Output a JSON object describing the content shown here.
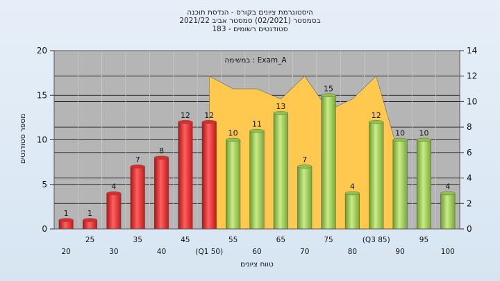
{
  "chart_data": {
    "type": "bar",
    "title": [
      "היסטוגרמת ציונים בקורס - הנדסת תוכנה",
      "בסמסטר  (02/2021)  סמסטר אביב 2021/22",
      "סטודנטים רשומים - 183"
    ],
    "xlabel": "טווח ציונים",
    "ylabel": "מספר סטודנטים",
    "annotation": "במשימה : Exam_A",
    "ylim": [
      0,
      20
    ],
    "y2lim": [
      0,
      14
    ],
    "yticks": [
      "0",
      "5",
      "10",
      "15",
      "20"
    ],
    "y2ticks": [
      "0",
      "2",
      "4",
      "6",
      "8",
      "10",
      "12",
      "14"
    ],
    "categories": [
      "20",
      "25",
      "30",
      "35",
      "40",
      "45",
      "50",
      "55",
      "60",
      "65",
      "70",
      "75",
      "80",
      "85",
      "90",
      "95",
      "100"
    ],
    "xtick_labels": [
      "20",
      "25",
      "30",
      "35",
      "40",
      "45",
      "(Q1 50)",
      "55",
      "60",
      "65",
      "70",
      "75",
      "80",
      "(Q3 85)",
      "90",
      "95",
      "100"
    ],
    "values": [
      1,
      1,
      4,
      7,
      8,
      12,
      12,
      10,
      11,
      13,
      7,
      15,
      4,
      12,
      10,
      10,
      4
    ],
    "bar_colors": [
      "#dd2a2a",
      "#dd2a2a",
      "#dd2a2a",
      "#dd2a2a",
      "#dd2a2a",
      "#dd2a2a",
      "#dd2a2a",
      "#8fc24a",
      "#8fc24a",
      "#8fc24a",
      "#8fc24a",
      "#8fc24a",
      "#8fc24a",
      "#8fc24a",
      "#8fc24a",
      "#8fc24a",
      "#8fc24a"
    ],
    "area_series": {
      "name": "",
      "color": "#ffc94f",
      "x": [
        "50",
        "55",
        "60",
        "65",
        "70",
        "75",
        "80",
        "85",
        "90"
      ],
      "values": [
        12,
        11,
        11,
        10.2,
        12,
        9.3,
        10.2,
        12,
        5.5
      ]
    },
    "grid": true,
    "colors": {
      "plot_bg": "#b5b5b5",
      "grid": "#000000"
    }
  }
}
